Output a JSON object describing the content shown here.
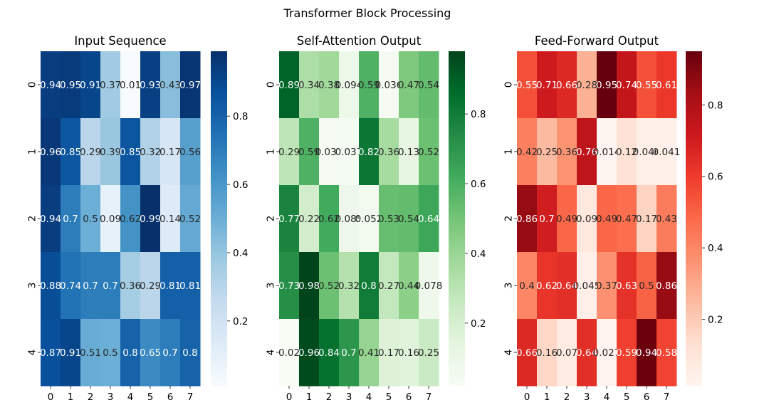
{
  "figure": {
    "suptitle": "Transformer Block Processing"
  },
  "chart_data": [
    {
      "type": "heatmap",
      "title": "Input Sequence",
      "colormap": "Blues",
      "x_ticks": [
        "0",
        "1",
        "2",
        "3",
        "4",
        "5",
        "6",
        "7"
      ],
      "y_ticks": [
        "0",
        "1",
        "2",
        "3",
        "4"
      ],
      "vmin": 0.01,
      "vmax": 0.99,
      "colorbar_ticks": [
        "0.2",
        "0.4",
        "0.6",
        "0.8"
      ],
      "values": [
        [
          0.94,
          0.95,
          0.91,
          0.37,
          0.01,
          0.93,
          0.43,
          0.97
        ],
        [
          0.96,
          0.85,
          0.29,
          0.39,
          0.85,
          0.32,
          0.17,
          0.56
        ],
        [
          0.94,
          0.7,
          0.5,
          0.09,
          0.62,
          0.99,
          0.14,
          0.52
        ],
        [
          0.88,
          0.74,
          0.7,
          0.7,
          0.36,
          0.29,
          0.81,
          0.81
        ],
        [
          0.87,
          0.91,
          0.51,
          0.5,
          0.8,
          0.65,
          0.7,
          0.8
        ]
      ],
      "labels": [
        [
          "0.94",
          "0.95",
          "0.91",
          "0.37",
          "0.01",
          "0.93",
          "0.43",
          "0.97"
        ],
        [
          "0.96",
          "0.85",
          "0.29",
          "0.39",
          "0.85",
          "0.32",
          "0.17",
          "0.56"
        ],
        [
          "0.94",
          "0.7",
          "0.5",
          "0.09",
          "0.62",
          "0.99",
          "0.14",
          "0.52"
        ],
        [
          "0.88",
          "0.74",
          "0.7",
          "0.7",
          "0.36",
          "0.29",
          "0.81",
          "0.81"
        ],
        [
          "0.87",
          "0.91",
          "0.51",
          "0.5",
          "0.8",
          "0.65",
          "0.7",
          "0.8"
        ]
      ]
    },
    {
      "type": "heatmap",
      "title": "Self-Attention Output",
      "colormap": "Greens",
      "x_ticks": [
        "0",
        "1",
        "2",
        "3",
        "4",
        "5",
        "6",
        "7"
      ],
      "y_ticks": [
        "0",
        "1",
        "2",
        "3",
        "4"
      ],
      "vmin": 0.02,
      "vmax": 0.98,
      "colorbar_ticks": [
        "0.2",
        "0.4",
        "0.6",
        "0.8"
      ],
      "values": [
        [
          0.89,
          0.34,
          0.38,
          0.094,
          0.59,
          0.036,
          0.47,
          0.54
        ],
        [
          0.29,
          0.59,
          0.031,
          0.037,
          0.82,
          0.36,
          0.13,
          0.52
        ],
        [
          0.77,
          0.22,
          0.62,
          0.085,
          0.052,
          0.53,
          0.54,
          0.64
        ],
        [
          0.73,
          0.98,
          0.52,
          0.32,
          0.8,
          0.27,
          0.44,
          0.078
        ],
        [
          0.02,
          0.96,
          0.84,
          0.7,
          0.41,
          0.17,
          0.16,
          0.25
        ]
      ],
      "labels": [
        [
          "0.89",
          "0.34",
          "0.38",
          "0.094",
          "0.59",
          "0.036",
          "0.47",
          "0.54"
        ],
        [
          "0.29",
          "0.59",
          "0.031",
          "0.037",
          "0.82",
          "0.36",
          "0.13",
          "0.52"
        ],
        [
          "0.77",
          "0.22",
          "0.62",
          "0.085",
          "0.052",
          "0.53",
          "0.54",
          "0.64"
        ],
        [
          "0.73",
          "0.98",
          "0.52",
          "0.32",
          "0.8",
          "0.27",
          "0.44",
          "0.078"
        ],
        [
          "0.02",
          "0.96",
          "0.84",
          "0.7",
          "0.41",
          "0.17",
          "0.16",
          "0.25"
        ]
      ]
    },
    {
      "type": "heatmap",
      "title": "Feed-Forward Output",
      "colormap": "Reds",
      "x_ticks": [
        "0",
        "1",
        "2",
        "3",
        "4",
        "5",
        "6",
        "7"
      ],
      "y_ticks": [
        "0",
        "1",
        "2",
        "3",
        "4"
      ],
      "vmin": 0.014,
      "vmax": 0.95,
      "colorbar_ticks": [
        "0.2",
        "0.4",
        "0.6",
        "0.8"
      ],
      "values": [
        [
          0.55,
          0.71,
          0.66,
          0.28,
          0.95,
          0.74,
          0.55,
          0.61
        ],
        [
          0.42,
          0.25,
          0.36,
          0.76,
          0.014,
          0.12,
          0.046,
          0.041
        ],
        [
          0.86,
          0.7,
          0.49,
          0.09,
          0.49,
          0.47,
          0.17,
          0.43
        ],
        [
          0.4,
          0.62,
          0.64,
          0.045,
          0.37,
          0.63,
          0.5,
          0.86
        ],
        [
          0.66,
          0.16,
          0.07,
          0.64,
          0.027,
          0.59,
          0.94,
          0.58
        ]
      ],
      "labels": [
        [
          "0.55",
          "0.71",
          "0.66",
          "0.28",
          "0.95",
          "0.74",
          "0.55",
          "0.61"
        ],
        [
          "0.42",
          "0.25",
          "0.36",
          "0.76",
          "0.014",
          "0.12",
          "0.046",
          "0.041"
        ],
        [
          "0.86",
          "0.7",
          "0.49",
          "0.09",
          "0.49",
          "0.47",
          "0.17",
          "0.43"
        ],
        [
          "0.4",
          "0.62",
          "0.64",
          "0.045",
          "0.37",
          "0.63",
          "0.5",
          "0.86"
        ],
        [
          "0.66",
          "0.16",
          "0.07",
          "0.64",
          "0.027",
          "0.59",
          "0.94",
          "0.58"
        ]
      ]
    }
  ]
}
